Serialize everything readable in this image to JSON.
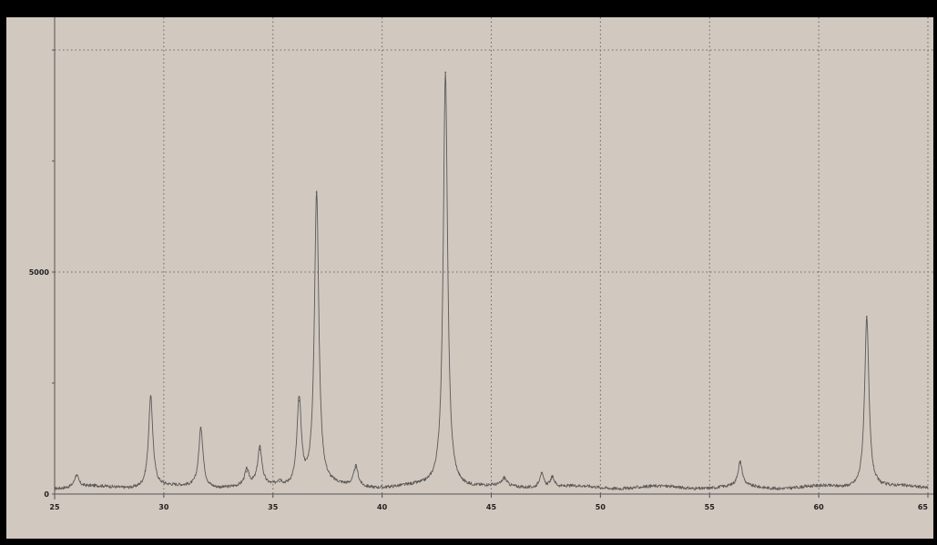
{
  "chart_data": {
    "type": "line",
    "title": "",
    "xlabel": "",
    "ylabel": "",
    "xlim": [
      25,
      65
    ],
    "ylim": [
      0,
      10000
    ],
    "x_ticks": [
      25,
      30,
      35,
      40,
      45,
      50,
      55,
      60,
      65
    ],
    "x_tick_labels": [
      "25",
      "30",
      "35",
      "40",
      "45",
      "50",
      "55",
      "60",
      "65"
    ],
    "y_gridlines": [
      5000,
      10000
    ],
    "y_tick_labels": [
      {
        "value": 0,
        "label": "0"
      },
      {
        "value": 5000,
        "label": "5000"
      }
    ],
    "grid": true,
    "grid_style": "dotted",
    "legend": "none",
    "colors": {
      "background": "#d1c8bf",
      "line": "#5a5a5a",
      "grid": "#6a6a6a",
      "frame": "#000000"
    },
    "series": [
      {
        "baseline": 150,
        "peaks": [
          {
            "x": 26.0,
            "y": 420
          },
          {
            "x": 29.4,
            "y": 2200
          },
          {
            "x": 31.7,
            "y": 1500
          },
          {
            "x": 33.8,
            "y": 500
          },
          {
            "x": 34.4,
            "y": 1000
          },
          {
            "x": 35.3,
            "y": 280
          },
          {
            "x": 36.2,
            "y": 2100
          },
          {
            "x": 37.0,
            "y": 6800
          },
          {
            "x": 38.8,
            "y": 600
          },
          {
            "x": 42.9,
            "y": 9500
          },
          {
            "x": 45.6,
            "y": 330
          },
          {
            "x": 47.3,
            "y": 480
          },
          {
            "x": 47.8,
            "y": 380
          },
          {
            "x": 56.4,
            "y": 700
          },
          {
            "x": 62.2,
            "y": 4000
          }
        ]
      }
    ]
  }
}
